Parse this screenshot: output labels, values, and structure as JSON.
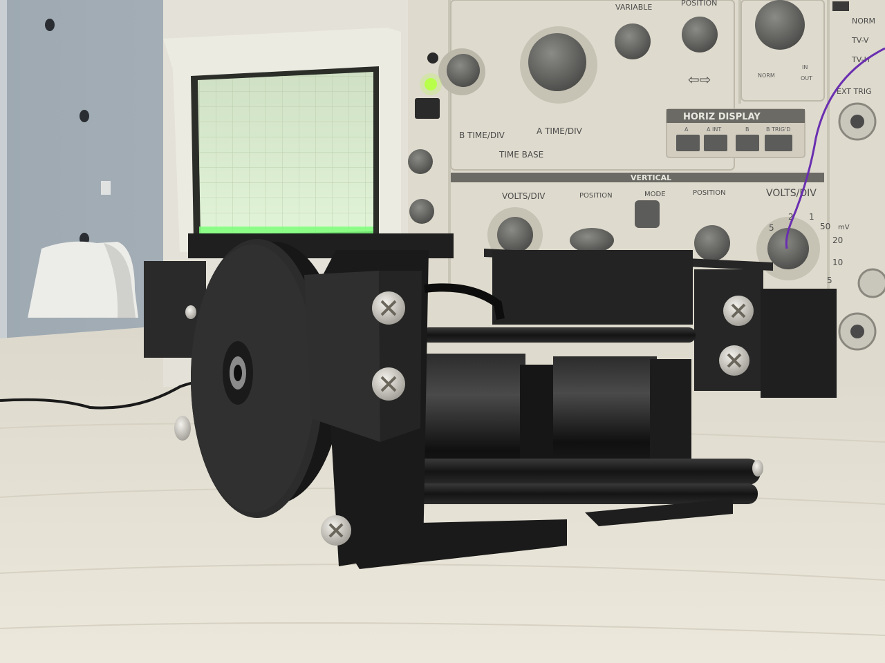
{
  "scene": {
    "description_free": true,
    "colors": {
      "wall": "#aeb8c0",
      "table": "#e6e2d6",
      "scope_body": "#e2e0d6",
      "scope_panel": "#ddd9cc",
      "crt_glow": "#dcefd0",
      "device_black": "#1c1c1c",
      "trace_green": "#7dff7a",
      "wire_purple": "#6a2fb0"
    }
  },
  "oscilloscope": {
    "timebase": {
      "b_time_div": "B TIME/DIV",
      "a_time_div": "A TIME/DIV",
      "time_base": "TIME BASE",
      "variable": "VARIABLE",
      "position": "POSITION"
    },
    "horiz_display": {
      "title": "HORIZ DISPLAY",
      "buttons": [
        "A",
        "A INT",
        "B",
        "B TRIG'D"
      ]
    },
    "vertical": {
      "title": "VERTICAL",
      "volts_div_left": "VOLTS/DIV",
      "position_left": "POSITION",
      "mode": "MODE",
      "position_right": "POSITION",
      "volts_div_right": "VOLTS/DIV",
      "scale_values": [
        "5",
        "2",
        "1",
        "50",
        "20",
        "10",
        "5"
      ],
      "mv_unit": "mV"
    },
    "trigger": {
      "norm": "NORM",
      "tv_v": "TV-V",
      "tv_h": "TV-H",
      "ext_trig": "EXT TRIG",
      "in": "IN",
      "out": "OUT",
      "norm_knob": "NORM"
    },
    "indicator_led_color": "#b8ff4a"
  }
}
